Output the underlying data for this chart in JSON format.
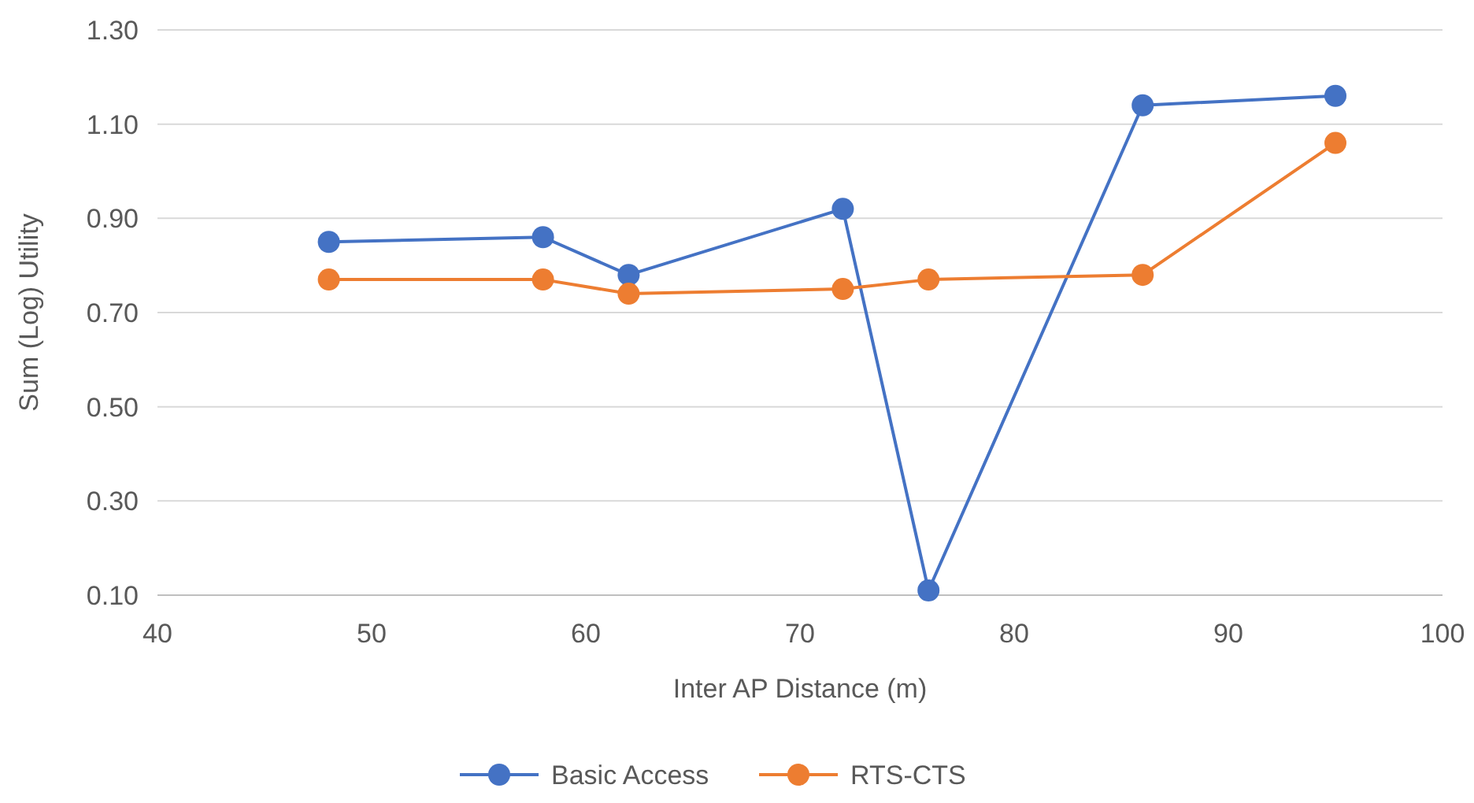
{
  "chart_data": {
    "type": "line",
    "xlabel": "Inter AP Distance (m)",
    "ylabel": "Sum (Log) Utility",
    "x": [
      48,
      58,
      62,
      72,
      76,
      86,
      95
    ],
    "series": [
      {
        "name": "Basic Access",
        "color": "#4472c4",
        "values": [
          0.85,
          0.86,
          0.78,
          0.92,
          0.11,
          1.14,
          1.16
        ]
      },
      {
        "name": "RTS-CTS",
        "color": "#ed7d31",
        "values": [
          0.77,
          0.77,
          0.74,
          0.75,
          0.77,
          0.78,
          1.06
        ]
      }
    ],
    "xlim": [
      40,
      100
    ],
    "xticks": [
      40,
      50,
      60,
      70,
      80,
      90,
      100
    ],
    "ylim": [
      0.1,
      1.3
    ],
    "yticks": [
      {
        "value": 0.1,
        "label": "0.10"
      },
      {
        "value": 0.3,
        "label": "0.30"
      },
      {
        "value": 0.5,
        "label": "0.50"
      },
      {
        "value": 0.7,
        "label": "0.70"
      },
      {
        "value": 0.9,
        "label": "0.90"
      },
      {
        "value": 1.1,
        "label": "1.10"
      },
      {
        "value": 1.3,
        "label": "1.30"
      }
    ],
    "grid": "y",
    "legend": "bottom",
    "marker": "circle",
    "line_style": "solid"
  }
}
